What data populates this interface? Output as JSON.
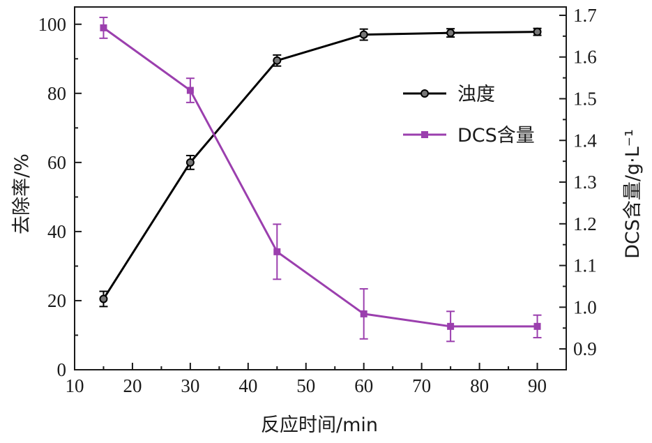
{
  "chart_data": {
    "type": "line",
    "xlabel": "反应时间/min",
    "ylabel_left": "去除率/%",
    "ylabel_right": "DCS含量/g·L⁻¹",
    "xlim": [
      10,
      95
    ],
    "xticks": [
      "10",
      "20",
      "30",
      "40",
      "50",
      "60",
      "70",
      "80",
      "90"
    ],
    "ylim_left": [
      0,
      105
    ],
    "yticks_left": [
      "0",
      "20",
      "40",
      "60",
      "80",
      "100"
    ],
    "ylim_right": [
      0.85,
      1.72
    ],
    "yticks_right": [
      "0.9",
      "1.0",
      "1.1",
      "1.2",
      "1.3",
      "1.4",
      "1.5",
      "1.6",
      "1.7"
    ],
    "legend_position": "right",
    "series": [
      {
        "name": "浊度",
        "axis": "left",
        "color": "#000000",
        "marker": "circle",
        "x": [
          15,
          30,
          45,
          60,
          75,
          90
        ],
        "y": [
          20.5,
          60,
          89.5,
          97,
          97.5,
          97.8
        ],
        "err": [
          2.2,
          2.0,
          1.6,
          1.6,
          1.2,
          1.0
        ]
      },
      {
        "name": "DCS含量",
        "axis": "right",
        "color": "#9B3FAE",
        "marker": "square",
        "x": [
          15,
          30,
          45,
          60,
          75,
          90
        ],
        "y": [
          1.67,
          1.52,
          1.133,
          0.984,
          0.954,
          0.954
        ],
        "err": [
          0.025,
          0.029,
          0.066,
          0.06,
          0.036,
          0.027
        ]
      }
    ]
  }
}
